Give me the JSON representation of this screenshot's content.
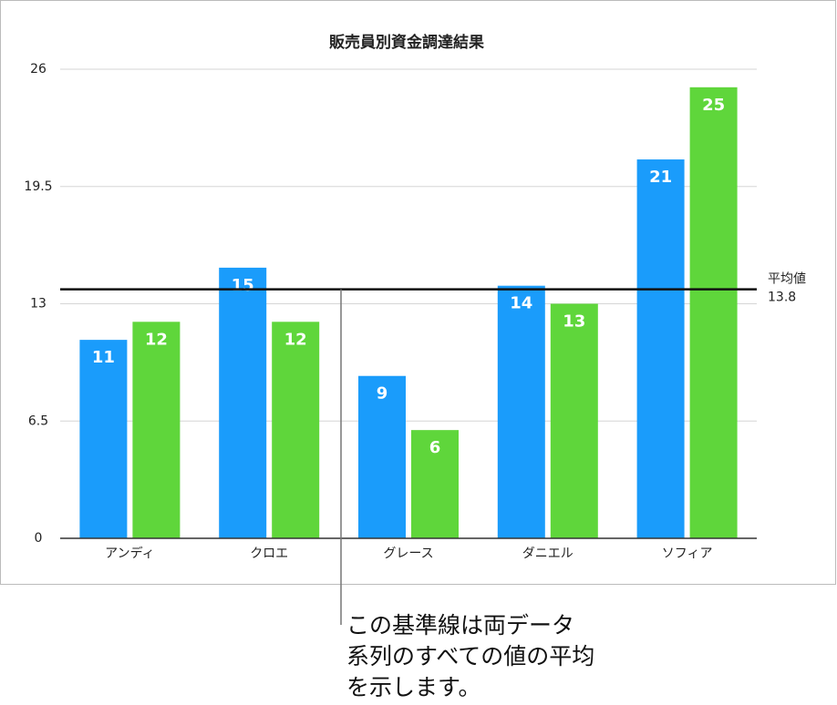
{
  "chart_data": {
    "type": "bar",
    "title": "販売員別資金調達結果",
    "categories": [
      "アンディ",
      "クロエ",
      "グレース",
      "ダニエル",
      "ソフィア"
    ],
    "series": [
      {
        "color": "#1a9cfb",
        "values": [
          11,
          15,
          9,
          14,
          21
        ]
      },
      {
        "color": "#5fd63b",
        "values": [
          12,
          12,
          6,
          13,
          25
        ]
      }
    ],
    "ylim": [
      0,
      26
    ],
    "yticks": [
      0,
      6.5,
      13,
      19.5,
      26
    ],
    "grid": true,
    "reference_line": {
      "label": "平均値",
      "value": 13.8
    },
    "annotation_lines": [
      "この基準線は両データ",
      "系列のすべての値の平均",
      "を示します。"
    ]
  }
}
